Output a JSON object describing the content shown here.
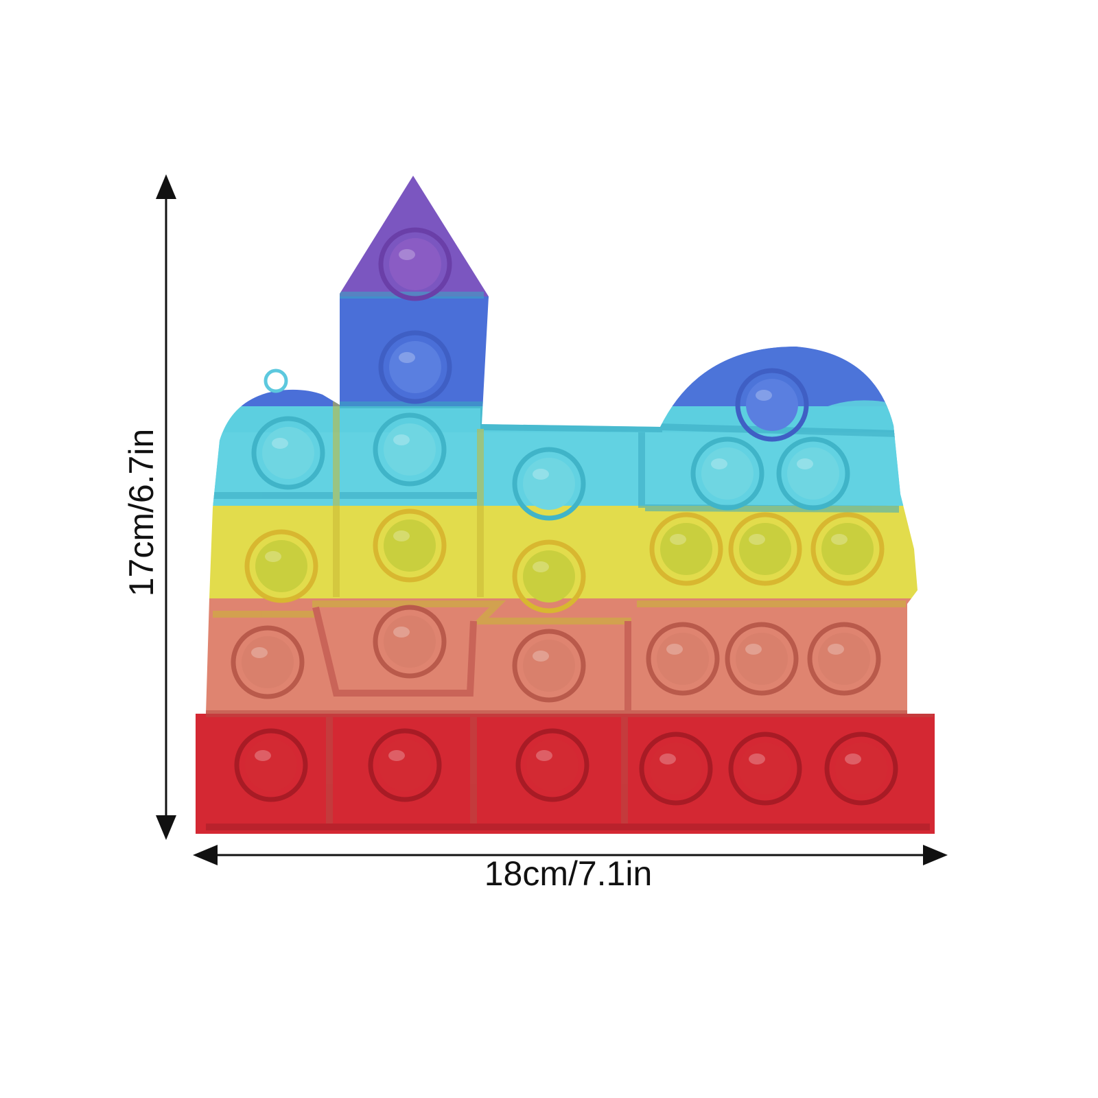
{
  "dimensions": {
    "height": "17cm/6.7in",
    "width": "18cm/7.1in"
  }
}
